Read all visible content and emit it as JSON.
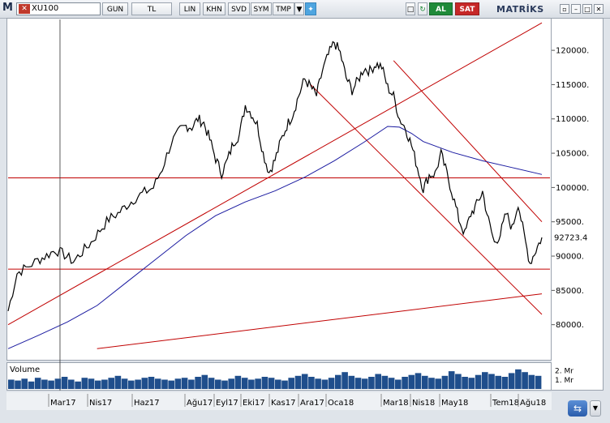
{
  "toolbar": {
    "logo": "M",
    "symbol": "XU100",
    "buttons": [
      "GUN",
      "TL",
      "LIN",
      "KHN",
      "SVD",
      "SYM",
      "TMP"
    ],
    "al_label": "AL",
    "sat_label": "SAT",
    "brand": "MATRİKS"
  },
  "colors": {
    "price_line": "#000000",
    "moving_average": "#1a1aa0",
    "trend_lines": "#c00000",
    "volume_bars": "#1f4e8c",
    "al": "#1f8a3a",
    "sat": "#c62828"
  },
  "chart_data": {
    "type": "line",
    "symbol": "XU100",
    "price_ticks": [
      "120000.",
      "115000.",
      "110000.",
      "105000.",
      "100000.",
      "95000.",
      "90000.",
      "85000.",
      "80000."
    ],
    "price_tick_values": [
      120000,
      115000,
      110000,
      105000,
      100000,
      95000,
      90000,
      85000,
      80000
    ],
    "last_value_label": "92723.4",
    "last_value": 92723.4,
    "ylim": [
      75000,
      124500
    ],
    "x_labels": [
      "Mar17",
      "Nis17",
      "Haz17",
      "Ağu17",
      "Eyl17",
      "Eki17",
      "Kas17",
      "Ara17",
      "Oca18",
      "Mar18",
      "Nis18",
      "May18",
      "Tem18",
      "Ağu18"
    ],
    "price_series": {
      "name": "",
      "points": [
        [
          0,
          82000
        ],
        [
          6,
          87500
        ],
        [
          12,
          88300
        ],
        [
          20,
          89400
        ],
        [
          26,
          90100
        ],
        [
          32,
          90900
        ],
        [
          38,
          90200
        ],
        [
          44,
          89200
        ],
        [
          50,
          90600
        ],
        [
          56,
          92000
        ],
        [
          62,
          93800
        ],
        [
          68,
          95400
        ],
        [
          74,
          96200
        ],
        [
          80,
          97400
        ],
        [
          86,
          98500
        ],
        [
          92,
          99300
        ],
        [
          98,
          100000
        ],
        [
          104,
          102800
        ],
        [
          110,
          106500
        ],
        [
          116,
          108300
        ],
        [
          120,
          109000
        ],
        [
          124,
          108800
        ],
        [
          128,
          110000
        ],
        [
          132,
          109400
        ],
        [
          136,
          107000
        ],
        [
          140,
          104200
        ],
        [
          144,
          102100
        ],
        [
          148,
          104000
        ],
        [
          152,
          106600
        ],
        [
          156,
          107700
        ],
        [
          160,
          112000
        ],
        [
          164,
          110800
        ],
        [
          168,
          109200
        ],
        [
          172,
          105000
        ],
        [
          176,
          102200
        ],
        [
          180,
          104000
        ],
        [
          184,
          106800
        ],
        [
          188,
          109000
        ],
        [
          192,
          110700
        ],
        [
          196,
          113400
        ],
        [
          200,
          115800
        ],
        [
          204,
          114700
        ],
        [
          208,
          113400
        ],
        [
          212,
          117000
        ],
        [
          216,
          119300
        ],
        [
          220,
          121200
        ],
        [
          224,
          119600
        ],
        [
          228,
          116000
        ],
        [
          232,
          114200
        ],
        [
          236,
          115600
        ],
        [
          240,
          117400
        ],
        [
          244,
          117000
        ],
        [
          248,
          118000
        ],
        [
          252,
          117600
        ],
        [
          256,
          114600
        ],
        [
          260,
          113300
        ],
        [
          264,
          110000
        ],
        [
          268,
          108700
        ],
        [
          272,
          106200
        ],
        [
          276,
          103000
        ],
        [
          280,
          99800
        ],
        [
          284,
          101800
        ],
        [
          288,
          102000
        ],
        [
          292,
          104900
        ],
        [
          296,
          102000
        ],
        [
          300,
          98800
        ],
        [
          304,
          95400
        ],
        [
          308,
          93200
        ],
        [
          312,
          96100
        ],
        [
          316,
          97500
        ],
        [
          320,
          99400
        ],
        [
          324,
          95200
        ],
        [
          328,
          91900
        ],
        [
          332,
          93200
        ],
        [
          336,
          96200
        ],
        [
          340,
          94000
        ],
        [
          344,
          97800
        ],
        [
          348,
          93000
        ],
        [
          352,
          89000
        ],
        [
          356,
          90900
        ],
        [
          360,
          92723.4
        ]
      ]
    },
    "moving_average": {
      "name": "",
      "points": [
        [
          0,
          76500
        ],
        [
          20,
          78400
        ],
        [
          40,
          80400
        ],
        [
          60,
          82800
        ],
        [
          80,
          86200
        ],
        [
          100,
          89600
        ],
        [
          120,
          93000
        ],
        [
          140,
          95900
        ],
        [
          160,
          97900
        ],
        [
          180,
          99500
        ],
        [
          200,
          101500
        ],
        [
          220,
          103900
        ],
        [
          240,
          106600
        ],
        [
          256,
          108900
        ],
        [
          264,
          108800
        ],
        [
          272,
          107900
        ],
        [
          280,
          106700
        ],
        [
          300,
          105100
        ],
        [
          320,
          103900
        ],
        [
          340,
          102900
        ],
        [
          360,
          101900
        ]
      ]
    },
    "horizontal_levels": [
      101400,
      88100
    ],
    "trend_lines": [
      {
        "from": [
          0,
          80000
        ],
        "to": [
          360,
          124000
        ]
      },
      {
        "from": [
          204,
          115000
        ],
        "to": [
          360,
          81500
        ]
      },
      {
        "from": [
          260,
          118500
        ],
        "to": [
          360,
          95000
        ]
      },
      {
        "from": [
          60,
          76500
        ],
        "to": [
          360,
          84500
        ]
      }
    ],
    "cursor_x_index": 35,
    "volume_panel": {
      "title": "Volume",
      "ticks": [
        "2. Mr",
        "1. Mr"
      ],
      "tick_values": [
        2,
        1
      ],
      "unit": "Mr",
      "ylim": [
        0,
        2.6
      ],
      "bars": [
        1.0,
        0.9,
        1.1,
        0.8,
        1.2,
        1.0,
        0.9,
        1.1,
        1.3,
        1.0,
        0.8,
        1.2,
        1.1,
        0.9,
        1.0,
        1.2,
        1.4,
        1.1,
        0.9,
        1.0,
        1.2,
        1.3,
        1.1,
        1.0,
        0.9,
        1.1,
        1.2,
        1.0,
        1.3,
        1.5,
        1.2,
        1.0,
        0.9,
        1.1,
        1.4,
        1.2,
        1.0,
        1.1,
        1.3,
        1.2,
        1.0,
        0.9,
        1.2,
        1.4,
        1.6,
        1.3,
        1.1,
        1.0,
        1.2,
        1.5,
        1.8,
        1.4,
        1.2,
        1.1,
        1.3,
        1.6,
        1.4,
        1.2,
        1.0,
        1.3,
        1.5,
        1.7,
        1.4,
        1.2,
        1.1,
        1.4,
        1.9,
        1.6,
        1.3,
        1.2,
        1.5,
        1.8,
        1.6,
        1.4,
        1.3,
        1.7,
        2.1,
        1.8,
        1.5,
        1.4
      ]
    }
  }
}
